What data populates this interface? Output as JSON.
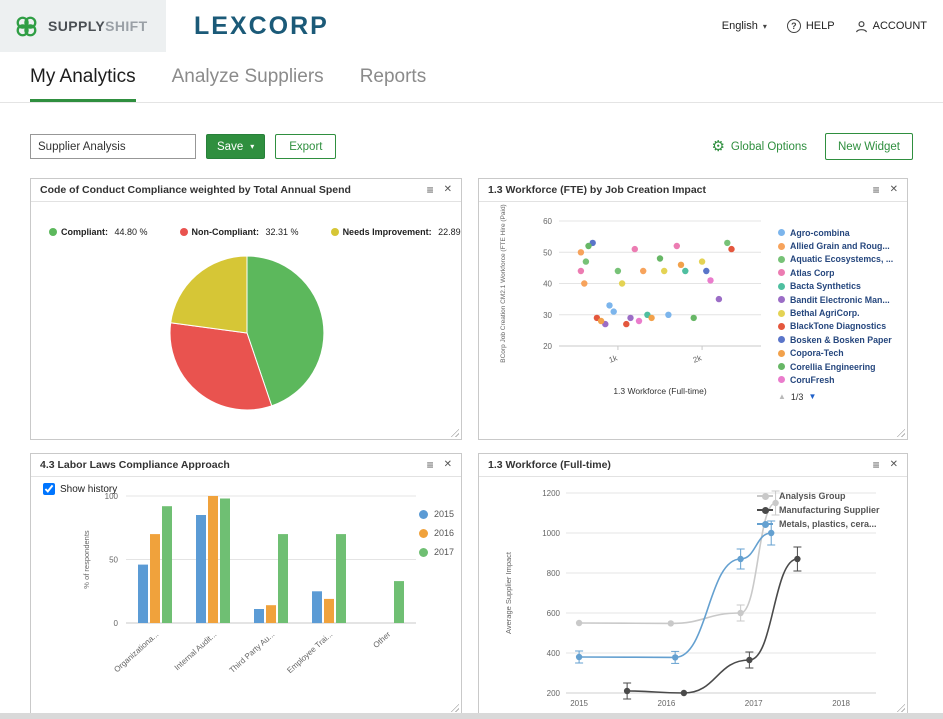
{
  "colors": {
    "accent": "#2f8f3f",
    "brand_navy": "#1b5a78"
  },
  "icons": {
    "caret_down": "▾",
    "menu": "≡",
    "close": "✕",
    "pager_up": "▲",
    "pager_down": "▼",
    "gear": "⚙",
    "help": "?"
  },
  "header": {
    "brand_primary": "SUPPLY",
    "brand_secondary": "SHIFT",
    "client_logo": "LEXCORP",
    "language": "English",
    "help_label": "HELP",
    "account_label": "ACCOUNT"
  },
  "nav": {
    "tabs": [
      {
        "label": "My Analytics",
        "active": true
      },
      {
        "label": "Analyze Suppliers",
        "active": false
      },
      {
        "label": "Reports",
        "active": false
      }
    ]
  },
  "toolbar": {
    "analysis_name": "Supplier Analysis",
    "save_label": "Save",
    "export_label": "Export",
    "global_options_label": "Global Options",
    "new_widget_label": "New Widget"
  },
  "widgets": [
    {
      "title": "Code of Conduct Compliance weighted by Total Annual Spend"
    },
    {
      "title": "1.3 Workforce (FTE) by Job Creation Impact",
      "pagination": "1/3"
    },
    {
      "title": "4.3 Labor Laws Compliance Approach",
      "show_history_label": "Show history",
      "show_history_checked": true
    },
    {
      "title": "1.3 Workforce (Full-time)"
    }
  ],
  "chart_data": [
    {
      "type": "pie",
      "title": "Code of Conduct Compliance weighted by Total Annual Spend",
      "legend_position": "top",
      "slices": [
        {
          "label": "Compliant",
          "value": 44.8,
          "display": "44.80 %",
          "color": "#5cb85c"
        },
        {
          "label": "Non-Compliant",
          "value": 32.31,
          "display": "32.31 %",
          "color": "#e9534f"
        },
        {
          "label": "Needs Improvement",
          "value": 22.89,
          "display": "22.89 %",
          "color": "#d6c636"
        }
      ]
    },
    {
      "type": "scatter",
      "title": "1.3 Workforce (FTE) by Job Creation Impact",
      "xlabel": "1.3 Workforce (Full-time)",
      "ylabel": "BCorp Job Creation CM2.1 Workforce (FTE Hire (Paid)",
      "xlim": [
        300,
        2700
      ],
      "ylim": [
        20,
        60
      ],
      "xticks": [
        {
          "value": 1000,
          "label": "1k"
        },
        {
          "value": 2000,
          "label": "2k"
        }
      ],
      "yticks": [
        20,
        30,
        40,
        50,
        60
      ],
      "legend_pagination": "1/3",
      "legend_position": "right",
      "series": [
        {
          "name": "Agro-combina",
          "color": "#7cb5ec",
          "points": [
            [
              900,
              33
            ],
            [
              950,
              31
            ],
            [
              1600,
              30
            ]
          ]
        },
        {
          "name": "Allied Grain and Roug...",
          "color": "#f7a35c",
          "points": [
            [
              560,
              50
            ],
            [
              600,
              40
            ],
            [
              1300,
              44
            ]
          ]
        },
        {
          "name": "Aquatic Ecosystemcs, ...",
          "color": "#77c277",
          "points": [
            [
              620,
              47
            ],
            [
              1000,
              44
            ],
            [
              2300,
              53
            ]
          ]
        },
        {
          "name": "Atlas Corp",
          "color": "#ec7cb2",
          "points": [
            [
              560,
              44
            ],
            [
              1200,
              51
            ],
            [
              1700,
              52
            ]
          ]
        },
        {
          "name": "Bacta Synthetics",
          "color": "#4fbfa0",
          "points": [
            [
              1350,
              30
            ],
            [
              1800,
              44
            ]
          ]
        },
        {
          "name": "Bandit Electronic Man...",
          "color": "#9b6dc6",
          "points": [
            [
              850,
              27
            ],
            [
              1150,
              29
            ],
            [
              2200,
              35
            ]
          ]
        },
        {
          "name": "Bethal AgriCorp.",
          "color": "#e4d354",
          "points": [
            [
              1050,
              40
            ],
            [
              1550,
              44
            ],
            [
              2000,
              47
            ]
          ]
        },
        {
          "name": "BlackTone Diagnostics",
          "color": "#e4573d",
          "points": [
            [
              750,
              29
            ],
            [
              1100,
              27
            ],
            [
              2350,
              51
            ]
          ]
        },
        {
          "name": "Bosken & Bosken Paper",
          "color": "#5a75c9",
          "points": [
            [
              700,
              53
            ],
            [
              2050,
              44
            ]
          ]
        },
        {
          "name": "Copora-Tech",
          "color": "#f2a14b",
          "points": [
            [
              800,
              28
            ],
            [
              1400,
              29
            ],
            [
              1750,
              46
            ]
          ]
        },
        {
          "name": "Corellia Engineering",
          "color": "#67b766",
          "points": [
            [
              650,
              52
            ],
            [
              1500,
              48
            ],
            [
              1900,
              29
            ]
          ]
        },
        {
          "name": "CoruFresh",
          "color": "#ea7ccc",
          "points": [
            [
              1250,
              28
            ],
            [
              2100,
              41
            ]
          ]
        }
      ]
    },
    {
      "type": "bar",
      "title": "4.3 Labor Laws Compliance Approach",
      "ylabel": "% of respondents",
      "ylim": [
        0,
        100
      ],
      "yticks": [
        0,
        50,
        100
      ],
      "categories": [
        "Organizationa...",
        "Internal Audit...",
        "Third Party Au...",
        "Employee Trai...",
        "Other"
      ],
      "legend_position": "right",
      "series": [
        {
          "name": "2015",
          "color": "#5b9bd5",
          "values": [
            46,
            85,
            11,
            25,
            0
          ]
        },
        {
          "name": "2016",
          "color": "#f0a23c",
          "values": [
            70,
            100,
            14,
            19,
            0
          ]
        },
        {
          "name": "2017",
          "color": "#6fbf73",
          "values": [
            92,
            98,
            70,
            70,
            33
          ]
        }
      ]
    },
    {
      "type": "line",
      "title": "1.3 Workforce (Full-time)",
      "ylabel": "Average Supplier Impact",
      "ylim": [
        200,
        1200
      ],
      "yticks": [
        200,
        400,
        600,
        800,
        1000,
        1200
      ],
      "xlim": [
        2014.85,
        2018.4
      ],
      "xticks": [
        2015,
        2016,
        2017,
        2018
      ],
      "legend_position": "top-right",
      "series": [
        {
          "name": "Analysis Group",
          "color": "#c9c9c9",
          "points": [
            [
              2015,
              550,
              0
            ],
            [
              2016.05,
              548,
              0
            ],
            [
              2016.85,
              600,
              40
            ],
            [
              2017.25,
              1150,
              60
            ]
          ]
        },
        {
          "name": "Manufacturing Supplier",
          "color": "#4a4a4a",
          "points": [
            [
              2015.55,
              210,
              40
            ],
            [
              2016.2,
              200,
              0
            ],
            [
              2016.95,
              365,
              40
            ],
            [
              2017.5,
              870,
              60
            ]
          ]
        },
        {
          "name": "Metals, plastics, cera...",
          "color": "#64a0d0",
          "points": [
            [
              2015,
              380,
              30
            ],
            [
              2016.1,
              378,
              30
            ],
            [
              2016.85,
              870,
              50
            ],
            [
              2017.2,
              1000,
              60
            ]
          ]
        }
      ]
    }
  ]
}
